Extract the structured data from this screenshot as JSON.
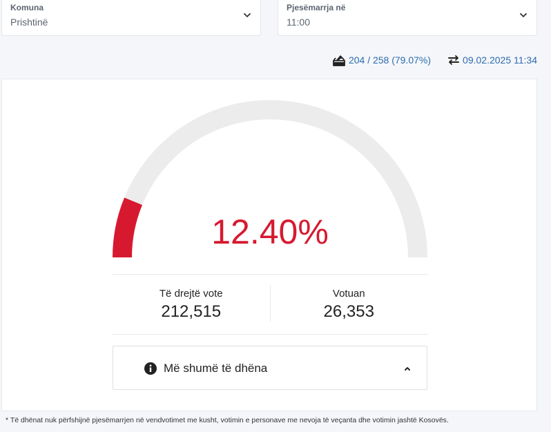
{
  "filters": {
    "komuna": {
      "label": "Komuna",
      "value": "Prishtinë"
    },
    "pjesemarrja": {
      "label": "Pjesëmarrja në",
      "value": "11:00"
    }
  },
  "stats": {
    "stations": "204 / 258 (79.07%)",
    "updated": "09.02.2025 11:34"
  },
  "gauge": {
    "percent_label": "12.40%",
    "percent": 12.4,
    "color_active": "#d7192f",
    "color_track": "#ececec"
  },
  "counts": {
    "eligible_label": "Të drejtë vote",
    "eligible_value": "212,515",
    "voted_label": "Votuan",
    "voted_value": "26,353"
  },
  "more": {
    "label": "Më shumë të dhëna"
  },
  "footnote": "* Të dhënat nuk përfshijnë pjesëmarrjen në vendvotimet me kusht, votimin e personave me nevoja të veçanta dhe votimin jashtë Kosovës."
}
